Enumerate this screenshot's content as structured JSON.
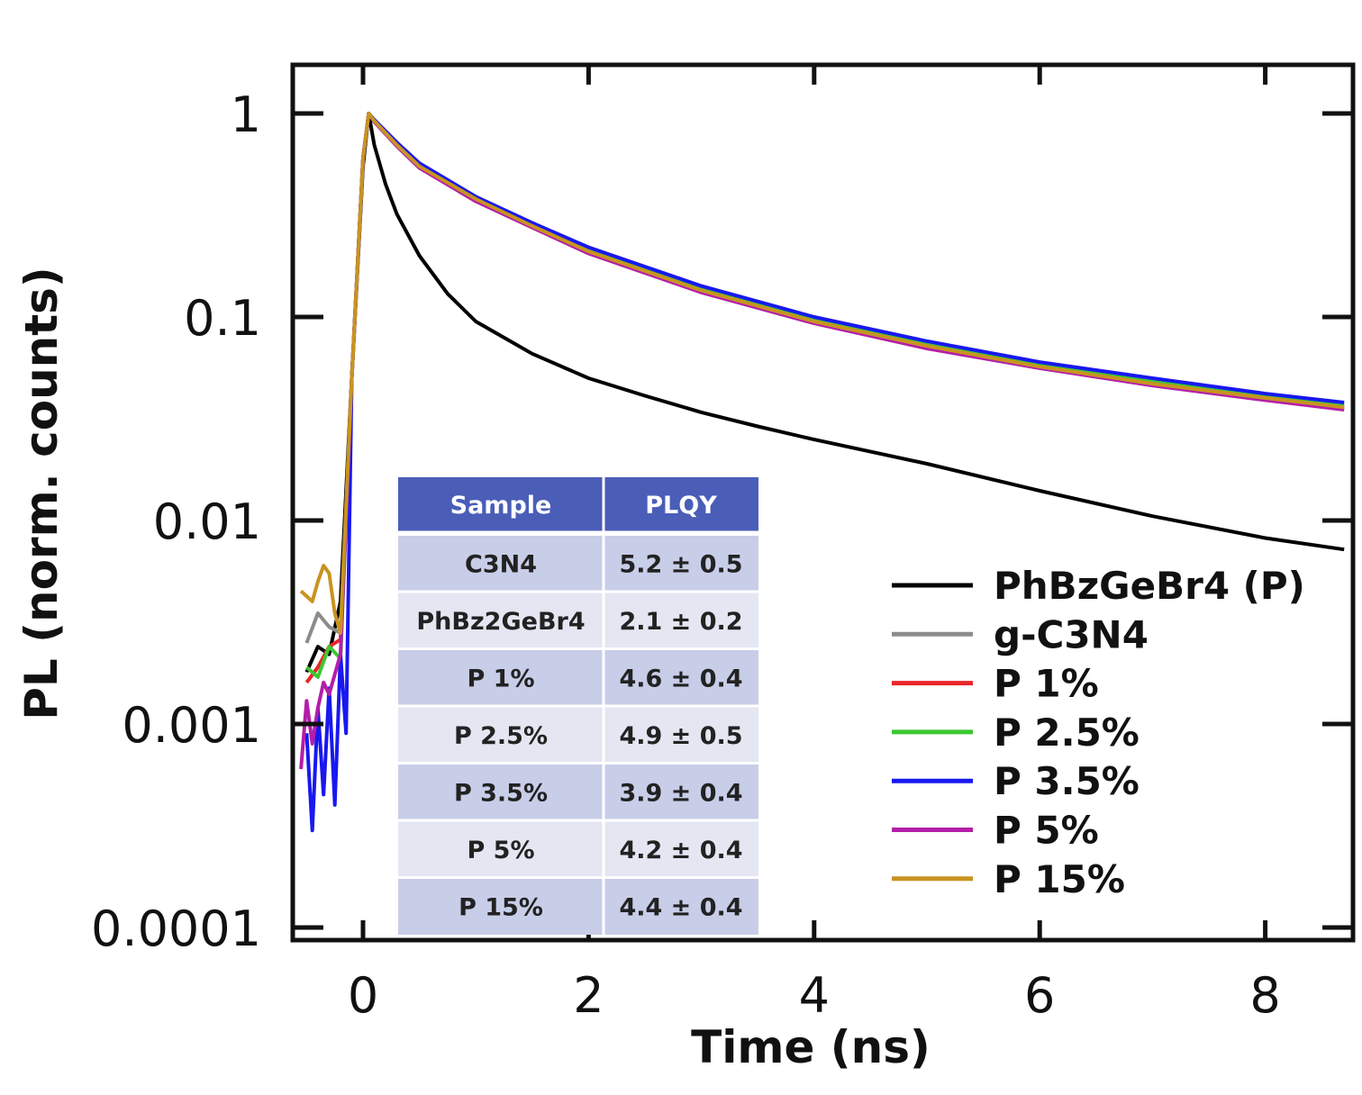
{
  "chart_data": {
    "type": "line",
    "yscale": "log",
    "xlabel": "Time (ns)",
    "ylabel": "PL (norm. counts)",
    "xlim": [
      -0.6,
      8.7
    ],
    "ylim": [
      0.0001,
      1.27
    ],
    "xticks": [
      0,
      2,
      4,
      6,
      8
    ],
    "xtick_labels": [
      "0",
      "2",
      "4",
      "6",
      "8"
    ],
    "yticks": [
      1,
      0.1,
      0.01,
      0.001,
      0.0001
    ],
    "ytick_labels": [
      "1",
      "0.1",
      "0.01",
      "0.001",
      "0.0001"
    ],
    "legend_position": "bottom-right",
    "series": [
      {
        "name": "PhBzGeBr4 (P)",
        "color": "#000000",
        "x": [
          -0.5,
          -0.4,
          -0.3,
          -0.2,
          -0.1,
          0.0,
          0.05,
          0.1,
          0.2,
          0.3,
          0.5,
          0.75,
          1.0,
          1.5,
          2.0,
          2.5,
          3.0,
          3.5,
          4.0,
          5.0,
          6.0,
          7.0,
          8.0,
          8.7
        ],
        "values": [
          0.0018,
          0.0024,
          0.0022,
          0.004,
          0.05,
          0.55,
          1.0,
          0.7,
          0.45,
          0.32,
          0.2,
          0.13,
          0.095,
          0.066,
          0.05,
          0.041,
          0.034,
          0.029,
          0.025,
          0.019,
          0.014,
          0.0105,
          0.0082,
          0.0072
        ]
      },
      {
        "name": "g-C3N4",
        "color": "#8c8c8c",
        "x": [
          -0.5,
          -0.4,
          -0.3,
          -0.2,
          -0.1,
          0.0,
          0.05,
          0.1,
          0.3,
          0.5,
          1.0,
          1.5,
          2.0,
          3.0,
          4.0,
          5.0,
          6.0,
          7.0,
          8.0,
          8.7
        ],
        "values": [
          0.0025,
          0.0035,
          0.003,
          0.0028,
          0.05,
          0.6,
          1.0,
          0.92,
          0.7,
          0.55,
          0.38,
          0.28,
          0.21,
          0.135,
          0.095,
          0.072,
          0.057,
          0.047,
          0.04,
          0.036
        ]
      },
      {
        "name": "P 1%",
        "color": "#e8262a",
        "x": [
          -0.5,
          -0.4,
          -0.3,
          -0.2,
          -0.1,
          0.0,
          0.05,
          0.1,
          0.3,
          0.5,
          1.0,
          1.5,
          2.0,
          3.0,
          4.0,
          5.0,
          6.0,
          7.0,
          8.0,
          8.7
        ],
        "values": [
          0.0016,
          0.0019,
          0.0024,
          0.0026,
          0.05,
          0.6,
          1.0,
          0.92,
          0.7,
          0.55,
          0.38,
          0.28,
          0.21,
          0.135,
          0.095,
          0.072,
          0.057,
          0.047,
          0.04,
          0.036
        ]
      },
      {
        "name": "P 2.5%",
        "color": "#3cc832",
        "x": [
          -0.5,
          -0.4,
          -0.3,
          -0.2,
          -0.1,
          0.0,
          0.05,
          0.1,
          0.3,
          0.5,
          1.0,
          1.5,
          2.0,
          3.0,
          4.0,
          5.0,
          6.0,
          7.0,
          8.0,
          8.7
        ],
        "values": [
          0.0019,
          0.0017,
          0.0024,
          0.0021,
          0.05,
          0.6,
          1.0,
          0.93,
          0.71,
          0.56,
          0.385,
          0.285,
          0.215,
          0.138,
          0.097,
          0.073,
          0.058,
          0.048,
          0.041,
          0.037
        ]
      },
      {
        "name": "P 3.5%",
        "color": "#1818f0",
        "x": [
          -0.5,
          -0.45,
          -0.4,
          -0.35,
          -0.3,
          -0.25,
          -0.2,
          -0.15,
          -0.1,
          0.0,
          0.05,
          0.1,
          0.3,
          0.5,
          1.0,
          1.5,
          2.0,
          3.0,
          4.0,
          5.0,
          6.0,
          7.0,
          8.0,
          8.7
        ],
        "values": [
          0.0009,
          0.0003,
          0.0012,
          0.00045,
          0.0015,
          0.0004,
          0.0022,
          0.0009,
          0.05,
          0.6,
          1.0,
          0.93,
          0.72,
          0.57,
          0.39,
          0.29,
          0.22,
          0.142,
          0.1,
          0.076,
          0.06,
          0.05,
          0.042,
          0.038
        ]
      },
      {
        "name": "P 5%",
        "color": "#b41ea8",
        "x": [
          -0.55,
          -0.5,
          -0.45,
          -0.4,
          -0.35,
          -0.3,
          -0.2,
          -0.1,
          0.0,
          0.05,
          0.1,
          0.3,
          0.5,
          1.0,
          1.5,
          2.0,
          3.0,
          4.0,
          5.0,
          6.0,
          7.0,
          8.0,
          8.7
        ],
        "values": [
          0.0006,
          0.0013,
          0.0008,
          0.0012,
          0.0016,
          0.0014,
          0.0022,
          0.05,
          0.6,
          1.0,
          0.91,
          0.69,
          0.54,
          0.37,
          0.275,
          0.205,
          0.132,
          0.093,
          0.07,
          0.056,
          0.046,
          0.039,
          0.035
        ]
      },
      {
        "name": "P 15%",
        "color": "#c89420",
        "x": [
          -0.55,
          -0.45,
          -0.4,
          -0.35,
          -0.3,
          -0.25,
          -0.2,
          -0.1,
          0.0,
          0.05,
          0.1,
          0.3,
          0.5,
          1.0,
          1.5,
          2.0,
          3.0,
          4.0,
          5.0,
          6.0,
          7.0,
          8.0,
          8.7
        ],
        "values": [
          0.0045,
          0.004,
          0.005,
          0.006,
          0.0055,
          0.0035,
          0.0028,
          0.05,
          0.6,
          1.0,
          0.92,
          0.7,
          0.55,
          0.38,
          0.28,
          0.21,
          0.135,
          0.095,
          0.072,
          0.057,
          0.047,
          0.04,
          0.036
        ]
      }
    ],
    "inset_table": {
      "headers": [
        "Sample",
        "PLQY"
      ],
      "header_color": "#4a5eb8",
      "row_colors": [
        "#c8cde8",
        "#e4e6f2"
      ],
      "rows": [
        {
          "sample": "C3N4",
          "plqy": "5.2 ± 0.5"
        },
        {
          "sample": "PhBz2GeBr4",
          "plqy": "2.1 ± 0.2"
        },
        {
          "sample": "P 1%",
          "plqy": "4.6 ± 0.4"
        },
        {
          "sample": "P 2.5%",
          "plqy": "4.9 ± 0.5"
        },
        {
          "sample": "P 3.5%",
          "plqy": "3.9 ± 0.4"
        },
        {
          "sample": "P 5%",
          "plqy": "4.2 ± 0.4"
        },
        {
          "sample": "P 15%",
          "plqy": "4.4 ± 0.4"
        }
      ]
    }
  }
}
